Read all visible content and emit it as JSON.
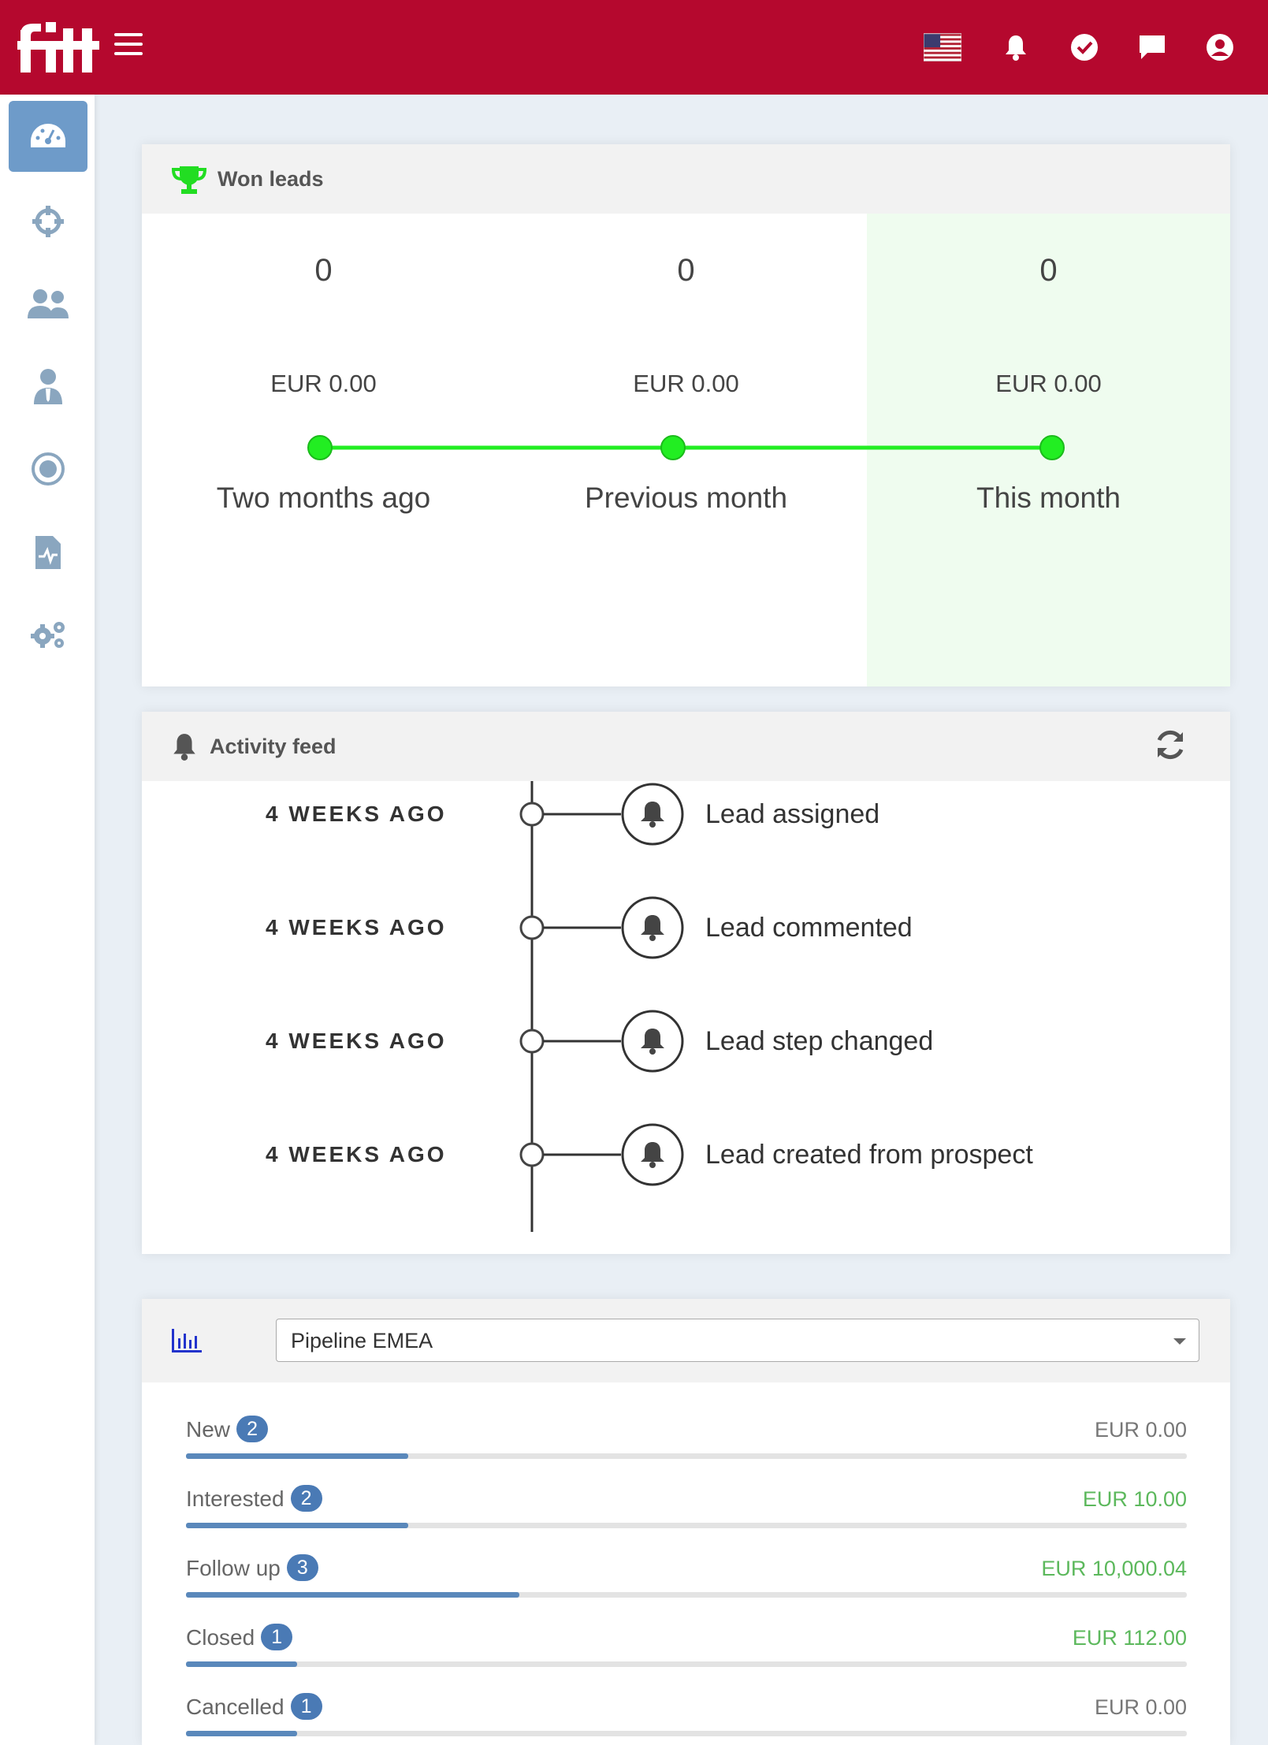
{
  "topbar": {
    "brand": "fit",
    "icons": [
      "us-flag-icon",
      "bell-icon",
      "check-circle-icon",
      "chat-icon",
      "user-circle-icon"
    ],
    "color": "#b5082e"
  },
  "sidebar": {
    "items": [
      {
        "name": "dashboard-icon",
        "active": true
      },
      {
        "name": "target-icon",
        "active": false
      },
      {
        "name": "users-icon",
        "active": false
      },
      {
        "name": "user-tie-icon",
        "active": false
      },
      {
        "name": "compass-icon",
        "active": false
      },
      {
        "name": "report-icon",
        "active": false
      },
      {
        "name": "cogs-icon",
        "active": false
      }
    ]
  },
  "won_leads": {
    "title": "Won leads",
    "periods": [
      {
        "count": "0",
        "amount": "EUR 0.00",
        "label": "Two months ago"
      },
      {
        "count": "0",
        "amount": "EUR 0.00",
        "label": "Previous month"
      },
      {
        "count": "0",
        "amount": "EUR 0.00",
        "label": "This month"
      }
    ],
    "accent": "#22ee22"
  },
  "activity_feed": {
    "title": "Activity feed",
    "items": [
      {
        "time": "4 WEEKS AGO",
        "text": "Lead assigned"
      },
      {
        "time": "4 WEEKS AGO",
        "text": "Lead commented"
      },
      {
        "time": "4 WEEKS AGO",
        "text": "Lead step changed"
      },
      {
        "time": "4 WEEKS AGO",
        "text": "Lead created from prospect"
      }
    ]
  },
  "pipeline": {
    "selected": "Pipeline EMEA",
    "stages": [
      {
        "name": "New",
        "count": "2",
        "amount": "EUR 0.00",
        "fill": 0.222,
        "positive": false
      },
      {
        "name": "Interested",
        "count": "2",
        "amount": "EUR 10.00",
        "fill": 0.222,
        "positive": true
      },
      {
        "name": "Follow up",
        "count": "3",
        "amount": "EUR 10,000.04",
        "fill": 0.333,
        "positive": true
      },
      {
        "name": "Closed",
        "count": "1",
        "amount": "EUR 112.00",
        "fill": 0.111,
        "positive": true
      },
      {
        "name": "Cancelled",
        "count": "1",
        "amount": "EUR 0.00",
        "fill": 0.111,
        "positive": false
      }
    ],
    "positive_color": "#5cb85c",
    "neutral_color": "#777777"
  }
}
